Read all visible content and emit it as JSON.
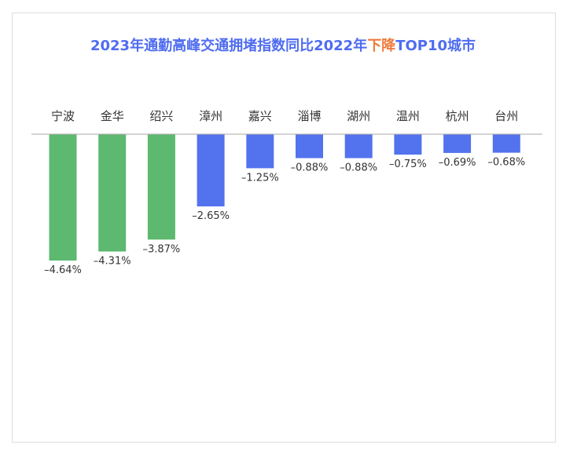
{
  "chart_data": {
    "type": "bar",
    "title": {
      "before": "2023年通勤高峰交通拥堵指数同比2022年",
      "highlight": "下降",
      "after": "TOP10城市"
    },
    "categories": [
      "宁波",
      "金华",
      "绍兴",
      "漳州",
      "嘉兴",
      "淄博",
      "湖州",
      "温州",
      "杭州",
      "台州"
    ],
    "values": [
      -4.64,
      -4.31,
      -3.87,
      -2.65,
      -1.25,
      -0.88,
      -0.88,
      -0.75,
      -0.69,
      -0.68
    ],
    "labels": [
      "–4.64%",
      "–4.31%",
      "–3.87%",
      "–2.65%",
      "–1.25%",
      "–0.88%",
      "–0.88%",
      "–0.75%",
      "–0.69%",
      "–0.68%"
    ],
    "bar_colors": [
      "#5cb96f",
      "#5cb96f",
      "#5cb96f",
      "#5272ee",
      "#5272ee",
      "#5272ee",
      "#5272ee",
      "#5272ee",
      "#5272ee",
      "#5272ee"
    ],
    "title_color": "#4f6cf0",
    "highlight_color": "#f07a3a",
    "ylim": [
      -4.64,
      0
    ],
    "grid": false,
    "legend": "none"
  }
}
